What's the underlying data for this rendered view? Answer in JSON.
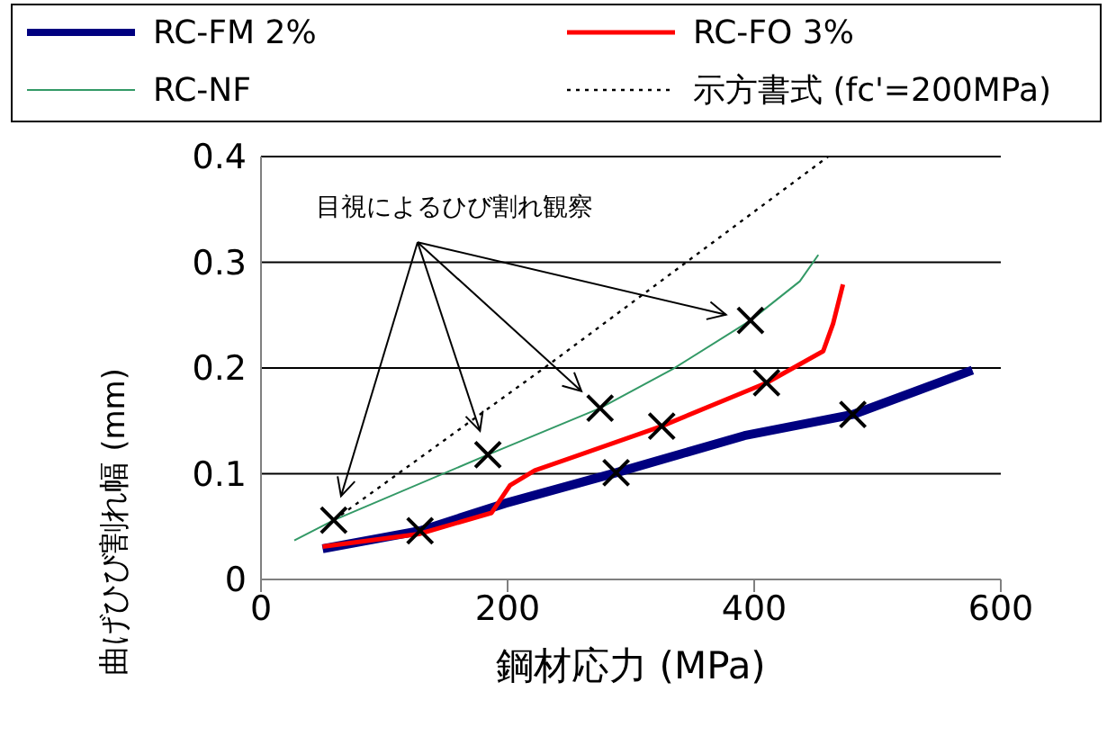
{
  "chart_data": {
    "type": "line",
    "xlabel": "鋼材応力 (MPa)",
    "ylabel": "曲げひび割れ幅 (mm)",
    "xlim": [
      0,
      600
    ],
    "xticks": [
      0,
      200,
      400,
      600
    ],
    "ylim": [
      0,
      0.4
    ],
    "yticks": [
      0,
      0.1,
      0.2,
      0.3,
      0.4
    ],
    "grid": "y",
    "legend": "top",
    "annotations": [
      "目視によるひび割れ観察"
    ],
    "series": [
      {
        "name": "RC-FM 2%",
        "color": "#000080",
        "x": [
          50,
          129,
          198,
          288,
          392,
          480,
          577
        ],
        "values": [
          0.029,
          0.046,
          0.072,
          0.101,
          0.136,
          0.156,
          0.198
        ]
      },
      {
        "name": "RC-FO 3%",
        "color": "#ff0000",
        "x": [
          50,
          128,
          187,
          202,
          222,
          325,
          410,
          456,
          464,
          472
        ],
        "values": [
          0.031,
          0.043,
          0.063,
          0.089,
          0.103,
          0.145,
          0.186,
          0.216,
          0.242,
          0.279
        ]
      },
      {
        "name": "RC-NF",
        "color": "#339966",
        "x": [
          27,
          59,
          184,
          275,
          334,
          397,
          437,
          452
        ],
        "values": [
          0.037,
          0.056,
          0.118,
          0.162,
          0.199,
          0.245,
          0.282,
          0.307
        ]
      },
      {
        "name": "示方書式 (fc'=200MPa)",
        "color": "#000000",
        "line_style": "dotted",
        "x": [
          59,
          232,
          460
        ],
        "values": [
          0.056,
          0.202,
          0.4
        ]
      },
      {
        "type": "scatter",
        "marker": "cross",
        "color": "#000000",
        "x": [
          59,
          184,
          275,
          397
        ],
        "values": [
          0.056,
          0.118,
          0.162,
          0.245
        ]
      },
      {
        "type": "scatter",
        "marker": "cross",
        "color": "#000000",
        "x": [
          129,
          288,
          325,
          410,
          480
        ],
        "values": [
          0.046,
          0.101,
          0.145,
          0.186,
          0.156
        ]
      }
    ]
  }
}
